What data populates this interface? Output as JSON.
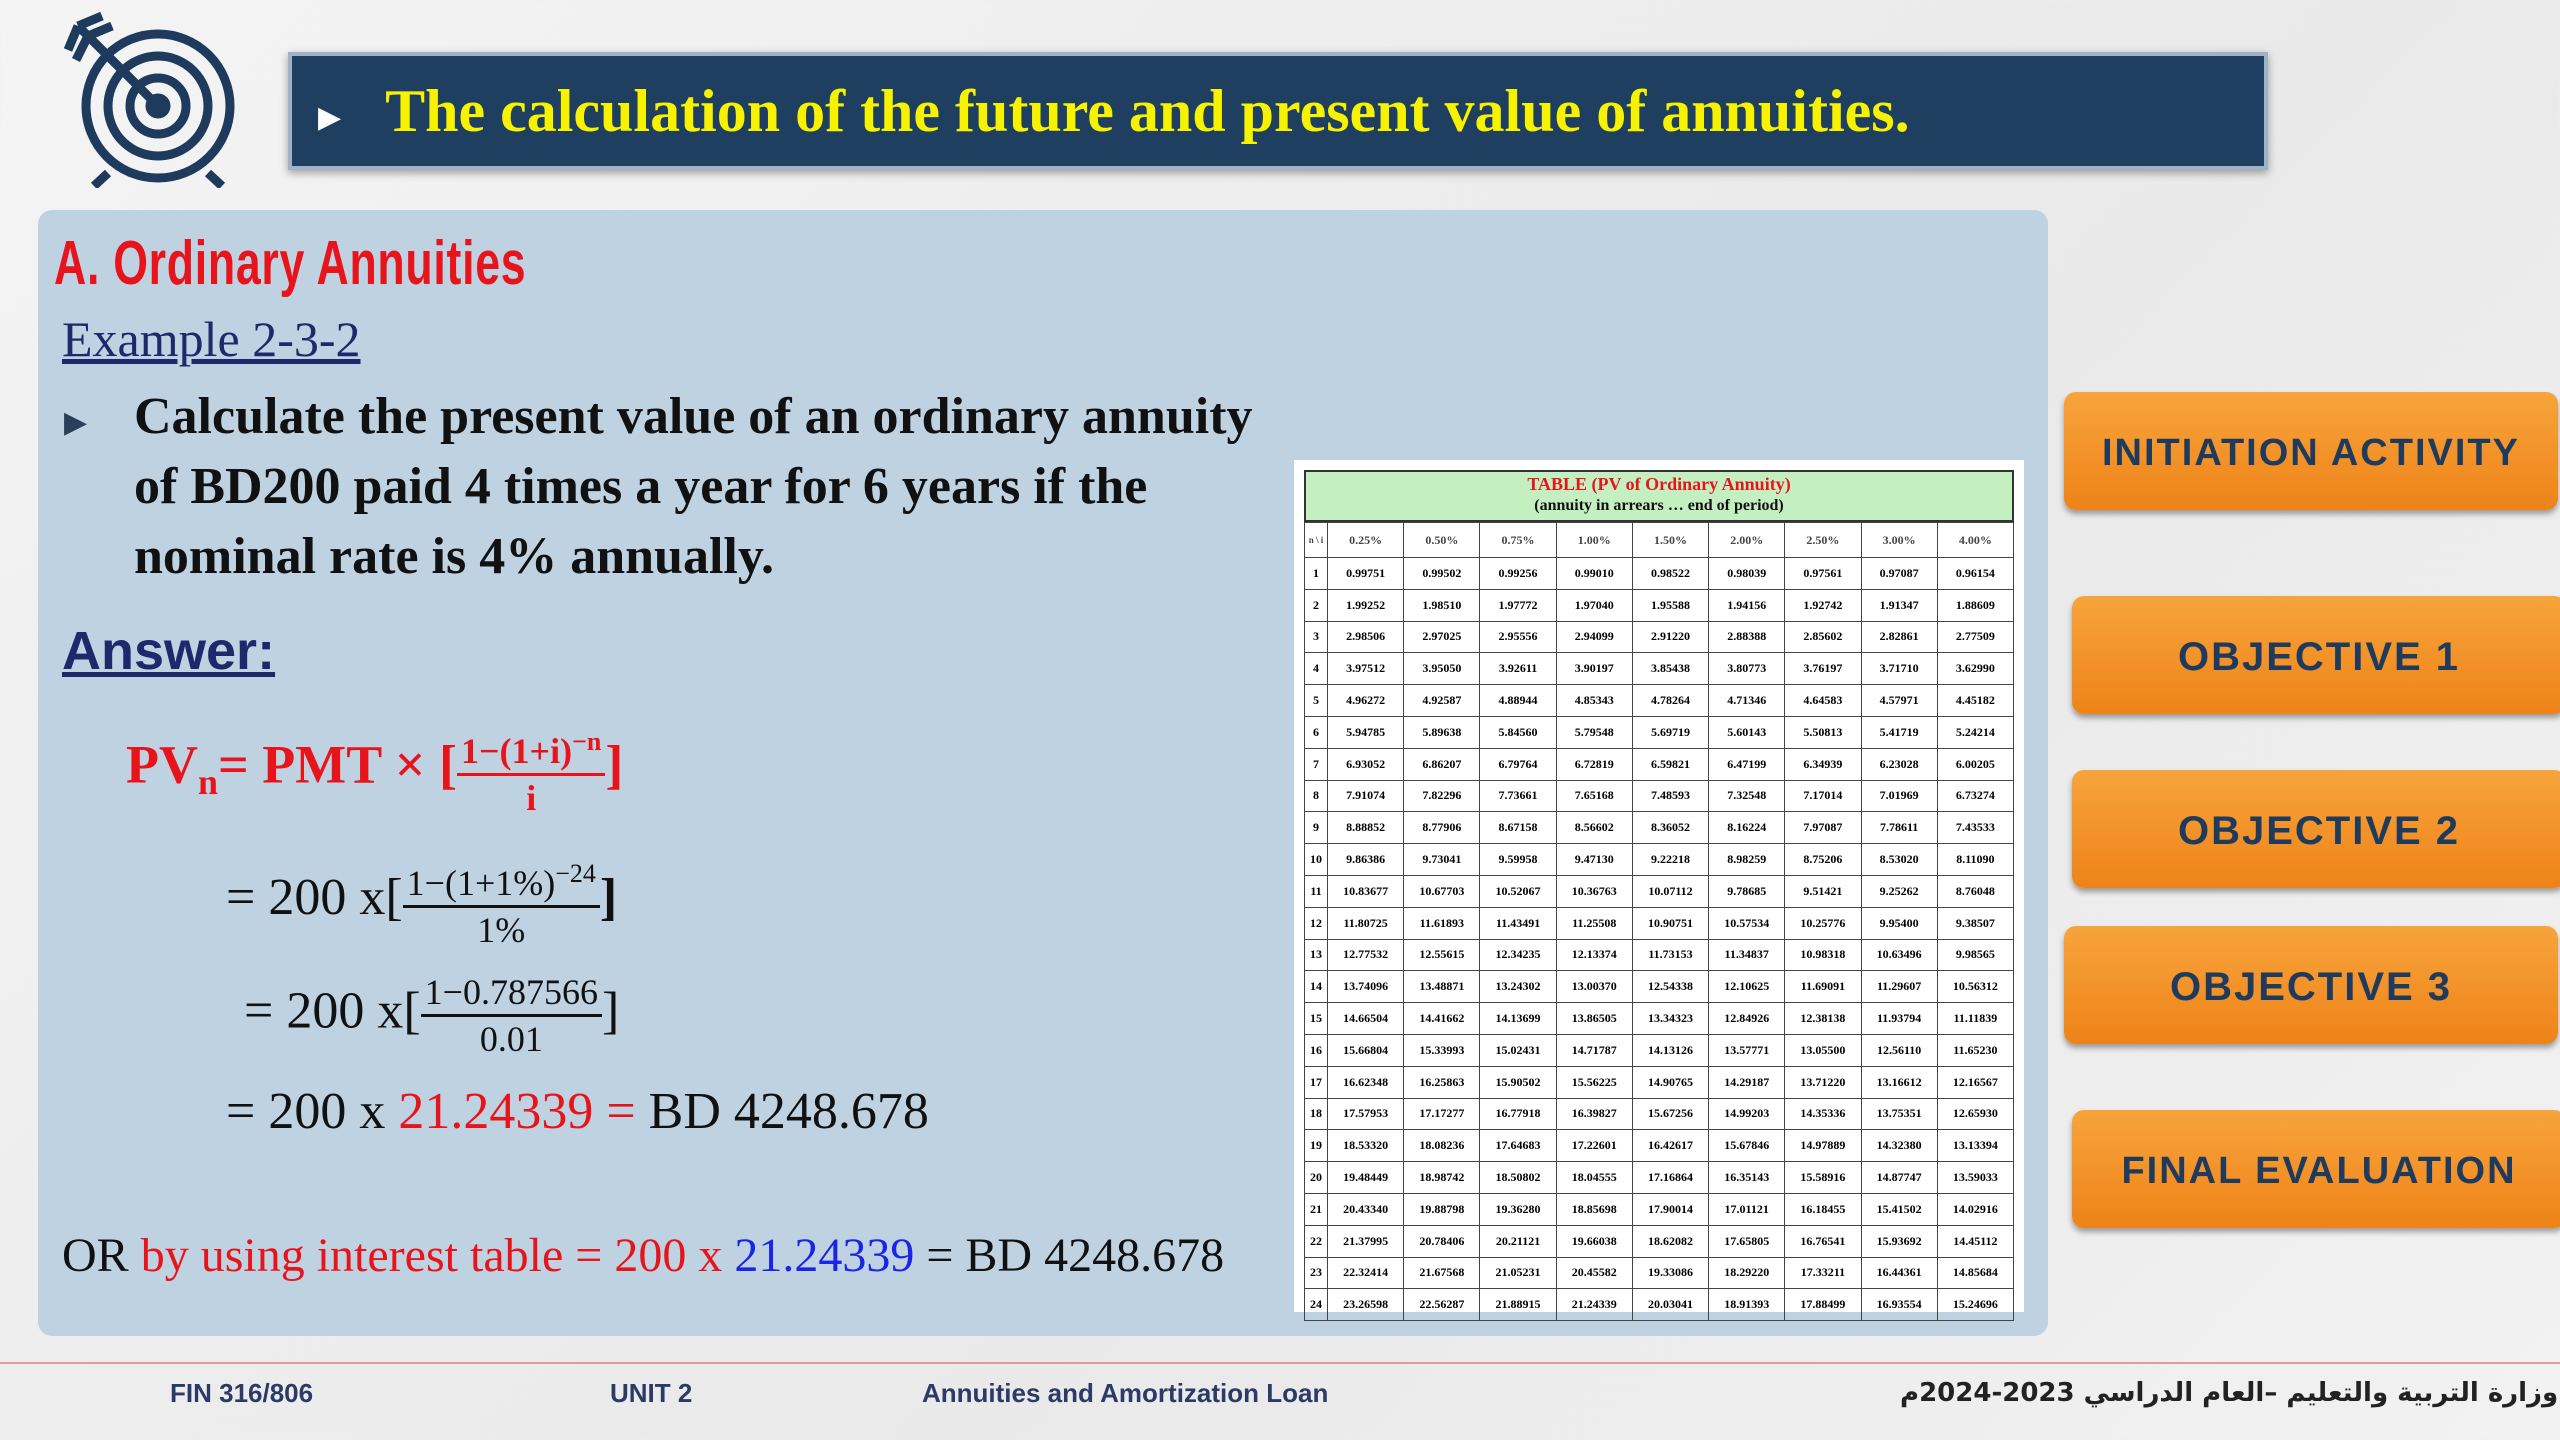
{
  "header": {
    "title": "The calculation of the future and present value of annuities."
  },
  "content": {
    "heading": "A.   Ordinary Annuities",
    "example": "Example 2-3-2",
    "problem": "Calculate the present value of an ordinary annuity of BD200 paid 4 times a year for 6 years if the nominal rate is 4% annually.",
    "answer_label": "Answer:",
    "formula": {
      "lhs": "PV",
      "sub": "n",
      "eq": "= PMT × [",
      "num": "1−(1+i)",
      "sup": "−n",
      "den": "i",
      "close": "]"
    },
    "step1": {
      "pre": "= 200 x[",
      "num": "1−(1+1%)",
      "sup": "−24",
      "den": "1%",
      "close": "]"
    },
    "step2": {
      "pre": "= 200 x[",
      "num": "1−0.787566",
      "den": "0.01",
      "close": "]"
    },
    "step3": {
      "pre": "= 200 x ",
      "value": "21.24339",
      "eq": " = ",
      "result": "BD 4248.678"
    },
    "or_line": {
      "or": "OR ",
      "by": "by using interest table = ",
      "pmt": "200 x ",
      "factor": "21.24339",
      "result": " = BD 4248.678"
    }
  },
  "table": {
    "title": "TABLE (PV of Ordinary Annuity)",
    "subtitle": "(annuity in arrears … end of period)",
    "corner": "n \\ i",
    "rates": [
      "0.25%",
      "0.50%",
      "0.75%",
      "1.00%",
      "1.50%",
      "2.00%",
      "2.50%",
      "3.00%",
      "4.00%"
    ],
    "rows": [
      [
        "1",
        "0.99751",
        "0.99502",
        "0.99256",
        "0.99010",
        "0.98522",
        "0.98039",
        "0.97561",
        "0.97087",
        "0.96154"
      ],
      [
        "2",
        "1.99252",
        "1.98510",
        "1.97772",
        "1.97040",
        "1.95588",
        "1.94156",
        "1.92742",
        "1.91347",
        "1.88609"
      ],
      [
        "3",
        "2.98506",
        "2.97025",
        "2.95556",
        "2.94099",
        "2.91220",
        "2.88388",
        "2.85602",
        "2.82861",
        "2.77509"
      ],
      [
        "4",
        "3.97512",
        "3.95050",
        "3.92611",
        "3.90197",
        "3.85438",
        "3.80773",
        "3.76197",
        "3.71710",
        "3.62990"
      ],
      [
        "5",
        "4.96272",
        "4.92587",
        "4.88944",
        "4.85343",
        "4.78264",
        "4.71346",
        "4.64583",
        "4.57971",
        "4.45182"
      ],
      [
        "6",
        "5.94785",
        "5.89638",
        "5.84560",
        "5.79548",
        "5.69719",
        "5.60143",
        "5.50813",
        "5.41719",
        "5.24214"
      ],
      [
        "7",
        "6.93052",
        "6.86207",
        "6.79764",
        "6.72819",
        "6.59821",
        "6.47199",
        "6.34939",
        "6.23028",
        "6.00205"
      ],
      [
        "8",
        "7.91074",
        "7.82296",
        "7.73661",
        "7.65168",
        "7.48593",
        "7.32548",
        "7.17014",
        "7.01969",
        "6.73274"
      ],
      [
        "9",
        "8.88852",
        "8.77906",
        "8.67158",
        "8.56602",
        "8.36052",
        "8.16224",
        "7.97087",
        "7.78611",
        "7.43533"
      ],
      [
        "10",
        "9.86386",
        "9.73041",
        "9.59958",
        "9.47130",
        "9.22218",
        "8.98259",
        "8.75206",
        "8.53020",
        "8.11090"
      ],
      [
        "11",
        "10.83677",
        "10.67703",
        "10.52067",
        "10.36763",
        "10.07112",
        "9.78685",
        "9.51421",
        "9.25262",
        "8.76048"
      ],
      [
        "12",
        "11.80725",
        "11.61893",
        "11.43491",
        "11.25508",
        "10.90751",
        "10.57534",
        "10.25776",
        "9.95400",
        "9.38507"
      ],
      [
        "13",
        "12.77532",
        "12.55615",
        "12.34235",
        "12.13374",
        "11.73153",
        "11.34837",
        "10.98318",
        "10.63496",
        "9.98565"
      ],
      [
        "14",
        "13.74096",
        "13.48871",
        "13.24302",
        "13.00370",
        "12.54338",
        "12.10625",
        "11.69091",
        "11.29607",
        "10.56312"
      ],
      [
        "15",
        "14.66504",
        "14.41662",
        "14.13699",
        "13.86505",
        "13.34323",
        "12.84926",
        "12.38138",
        "11.93794",
        "11.11839"
      ],
      [
        "16",
        "15.66804",
        "15.33993",
        "15.02431",
        "14.71787",
        "14.13126",
        "13.57771",
        "13.05500",
        "12.56110",
        "11.65230"
      ],
      [
        "17",
        "16.62348",
        "16.25863",
        "15.90502",
        "15.56225",
        "14.90765",
        "14.29187",
        "13.71220",
        "13.16612",
        "12.16567"
      ],
      [
        "18",
        "17.57953",
        "17.17277",
        "16.77918",
        "16.39827",
        "15.67256",
        "14.99203",
        "14.35336",
        "13.75351",
        "12.65930"
      ],
      [
        "19",
        "18.53320",
        "18.08236",
        "17.64683",
        "17.22601",
        "16.42617",
        "15.67846",
        "14.97889",
        "14.32380",
        "13.13394"
      ],
      [
        "20",
        "19.48449",
        "18.98742",
        "18.50802",
        "18.04555",
        "17.16864",
        "16.35143",
        "15.58916",
        "14.87747",
        "13.59033"
      ],
      [
        "21",
        "20.43340",
        "19.88798",
        "19.36280",
        "18.85698",
        "17.90014",
        "17.01121",
        "16.18455",
        "15.41502",
        "14.02916"
      ],
      [
        "22",
        "21.37995",
        "20.78406",
        "20.21121",
        "19.66038",
        "18.62082",
        "17.65805",
        "16.76541",
        "15.93692",
        "14.45112"
      ],
      [
        "23",
        "22.32414",
        "21.67568",
        "21.05231",
        "20.45582",
        "19.33086",
        "18.29220",
        "17.33211",
        "16.44361",
        "14.85684"
      ],
      [
        "24",
        "23.26598",
        "22.56287",
        "21.88915",
        "21.24339",
        "20.03041",
        "18.91393",
        "17.88499",
        "16.93554",
        "15.24696"
      ]
    ]
  },
  "menu": {
    "initiation": "INITIATION ACTIVITY",
    "obj1": "OBJECTIVE 1",
    "obj2": "OBJECTIVE 2",
    "obj3": "OBJECTIVE 3",
    "final": "FINAL EVALUATION"
  },
  "footer": {
    "course": "FIN 316/806",
    "unit": "UNIT 2",
    "topic": "Annuities and Amortization Loan",
    "ministry": "وزارة التربية والتعليم –العام الدراسي 2023-2024م"
  },
  "colors": {
    "title_bg": "#1f3f60",
    "title_text": "#f6f200",
    "accent_red": "#e8141b",
    "button_orange": "#f29227",
    "panel_bg": "#bfd2e2"
  }
}
